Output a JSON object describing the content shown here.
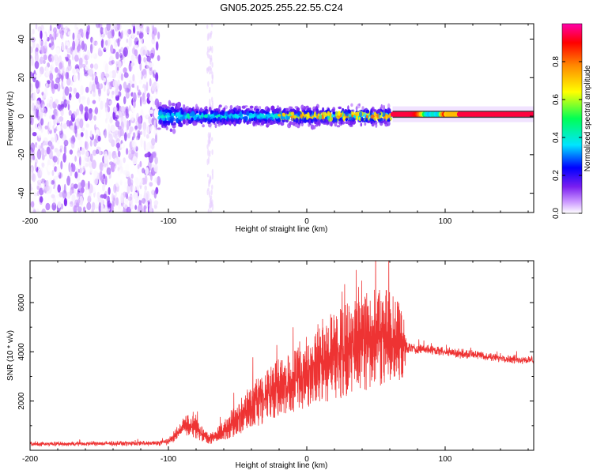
{
  "figure_title": "GN05.2025.255.22.55.C24",
  "chart_data": [
    {
      "type": "heatmap",
      "title": "GN05.2025.255.22.55.C24",
      "xlabel": "Height of straight line (km)",
      "ylabel": "Frequency (Hz)",
      "xlim": [
        -200,
        164
      ],
      "ylim": [
        -50,
        48
      ],
      "x_ticks": [
        -200,
        -100,
        0,
        100
      ],
      "x_tick_labels": [
        "-200",
        "-100",
        "0",
        "100"
      ],
      "y_ticks": [
        -40,
        -20,
        0,
        20,
        40
      ],
      "y_tick_labels": [
        "-40",
        "-20",
        "0",
        "20",
        "40"
      ],
      "colorbar": {
        "label": "Normalized spectral amplitude",
        "range": [
          0,
          1
        ],
        "ticks": [
          0.0,
          0.2,
          0.4,
          0.6,
          0.8
        ],
        "tick_labels": [
          "0.0",
          "0.2",
          "0.4",
          "0.6",
          "0.8"
        ],
        "colormap": [
          "#ffffff",
          "#cc99ff",
          "#7a1ff0",
          "#0000ff",
          "#00e5ff",
          "#00ff55",
          "#ffff00",
          "#ff8800",
          "#ff0000",
          "#ff00aa"
        ]
      },
      "regions": [
        {
          "name": "broadband noise",
          "x_range": [
            -200,
            -107
          ],
          "freq_range": [
            -50,
            48
          ],
          "amplitude": 0.15
        },
        {
          "name": "faint streak",
          "x_range": [
            -72,
            -68
          ],
          "freq_range": [
            -50,
            48
          ],
          "amplitude": 0.05
        },
        {
          "name": "meteor ridge",
          "x_range": [
            -107,
            61
          ],
          "center_freq": 0,
          "half_width_hz": 6,
          "amplitude": 0.35
        },
        {
          "name": "strong line",
          "x_range": [
            62,
            164
          ],
          "center_freq": 1,
          "half_width_hz": 2,
          "amplitude": 0.9
        }
      ]
    },
    {
      "type": "line",
      "title": "",
      "xlabel": "Height of straight line (km)",
      "ylabel": "SNR (10 * v/v)",
      "xlim": [
        -200,
        164
      ],
      "ylim": [
        0,
        7700
      ],
      "x_ticks": [
        -200,
        -100,
        0,
        100
      ],
      "x_tick_labels": [
        "-200",
        "-100",
        "0",
        "100"
      ],
      "y_ticks": [
        2000,
        4000,
        6000
      ],
      "y_tick_labels": [
        "2000",
        "4000",
        "6000"
      ],
      "series": [
        {
          "name": "SNR",
          "color": "#ee3333",
          "envelope_x": [
            -200,
            -110,
            -100,
            -95,
            -90,
            -85,
            -80,
            -75,
            -70,
            -65,
            -60,
            -50,
            -40,
            -30,
            -20,
            -10,
            0,
            10,
            20,
            30,
            40,
            50,
            60,
            65,
            70,
            72,
            75,
            80,
            90,
            100,
            110,
            120,
            130,
            140,
            150,
            164
          ],
          "envelope_lo": [
            150,
            170,
            200,
            350,
            500,
            600,
            450,
            350,
            250,
            300,
            400,
            600,
            900,
            1100,
            1400,
            1500,
            1600,
            1800,
            2000,
            2200,
            2400,
            2500,
            2700,
            2800,
            2900,
            3800,
            3850,
            3900,
            3850,
            3800,
            3700,
            3700,
            3600,
            3550,
            3500,
            3450
          ],
          "envelope_hi": [
            350,
            400,
            500,
            900,
            1300,
            1500,
            1300,
            900,
            700,
            900,
            1200,
            1900,
            2700,
            3300,
            3900,
            4200,
            4700,
            5300,
            5700,
            6000,
            6300,
            6800,
            6500,
            6200,
            5500,
            4500,
            4450,
            4350,
            4300,
            4250,
            4150,
            4100,
            4000,
            3950,
            3900,
            3850
          ]
        }
      ]
    }
  ]
}
